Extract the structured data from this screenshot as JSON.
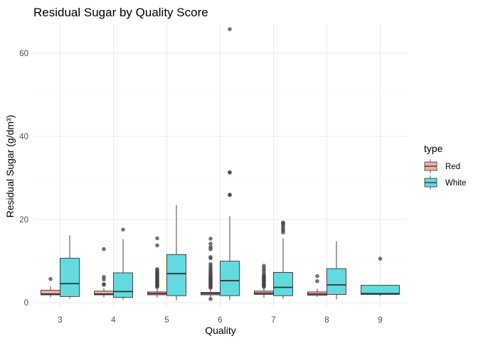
{
  "chart_data": {
    "type": "boxplot",
    "title": "Residual Sugar by Quality Score",
    "xlabel": "Quality",
    "ylabel": "Residual Sugar (g/dm³)",
    "categories": [
      "3",
      "4",
      "5",
      "6",
      "7",
      "8",
      "9"
    ],
    "ylim": [
      -1,
      67
    ],
    "yticks": [
      0,
      20,
      40,
      60
    ],
    "grid": true,
    "legend": {
      "title": "type",
      "position": "right"
    },
    "colors": {
      "Red": "#F8A9A3",
      "White": "#63DADF",
      "outlier": "#444444",
      "line": "#333333"
    },
    "series": [
      {
        "name": "Red",
        "boxes": [
          {
            "category": "3",
            "whisker_low": 1.3,
            "q1": 1.9,
            "median": 2.1,
            "q3": 3.0,
            "whisker_high": 4.0,
            "outliers": [
              5.7
            ]
          },
          {
            "category": "4",
            "whisker_low": 1.3,
            "q1": 1.9,
            "median": 2.1,
            "q3": 2.8,
            "whisker_high": 3.5,
            "outliers": [
              4.3,
              4.5,
              5.6,
              6.2,
              12.9
            ]
          },
          {
            "category": "5",
            "whisker_low": 1.2,
            "q1": 1.9,
            "median": 2.2,
            "q3": 2.6,
            "whisker_high": 3.6,
            "outliers": [
              3.8,
              4.0,
              4.2,
              4.4,
              4.6,
              4.8,
              5.0,
              5.2,
              5.4,
              5.6,
              5.8,
              6.0,
              6.2,
              6.4,
              6.6,
              6.8,
              7.0,
              7.2,
              7.5,
              7.8,
              8.1,
              13.8,
              15.5
            ]
          },
          {
            "category": "6",
            "whisker_low": 0.9,
            "q1": 1.9,
            "median": 2.2,
            "q3": 2.5,
            "whisker_high": 3.4,
            "outliers": [
              0.9,
              3.6,
              3.8,
              4.0,
              4.2,
              4.4,
              4.6,
              4.8,
              5.0,
              5.2,
              5.4,
              5.6,
              5.8,
              6.0,
              6.2,
              6.5,
              6.8,
              7.1,
              7.5,
              7.9,
              8.3,
              8.8,
              9.3,
              10.7,
              11.0,
              12.9,
              13.4,
              14.2,
              15.4
            ]
          },
          {
            "category": "7",
            "whisker_low": 1.2,
            "q1": 2.0,
            "median": 2.3,
            "q3": 2.8,
            "whisker_high": 3.6,
            "outliers": [
              3.8,
              4.0,
              4.2,
              4.4,
              4.6,
              4.8,
              5.0,
              5.2,
              5.4,
              5.6,
              5.8,
              6.0,
              6.2,
              6.4,
              6.7,
              7.2,
              7.8,
              8.3,
              8.9
            ]
          },
          {
            "category": "8",
            "whisker_low": 1.4,
            "q1": 1.8,
            "median": 2.1,
            "q3": 2.6,
            "whisker_high": 3.4,
            "outliers": [
              5.2,
              6.4
            ]
          }
        ]
      },
      {
        "name": "White",
        "boxes": [
          {
            "category": "3",
            "whisker_low": 1.0,
            "q1": 1.5,
            "median": 4.6,
            "q3": 10.7,
            "whisker_high": 16.2,
            "outliers": []
          },
          {
            "category": "4",
            "whisker_low": 0.7,
            "q1": 1.3,
            "median": 2.7,
            "q3": 7.2,
            "whisker_high": 15.3,
            "outliers": [
              17.6
            ]
          },
          {
            "category": "5",
            "whisker_low": 0.6,
            "q1": 1.7,
            "median": 7.0,
            "q3": 11.6,
            "whisker_high": 23.5,
            "outliers": []
          },
          {
            "category": "6",
            "whisker_low": 0.7,
            "q1": 1.7,
            "median": 5.3,
            "q3": 10.0,
            "whisker_high": 20.8,
            "outliers": [
              25.9,
              26.0,
              31.3,
              31.4,
              65.8
            ]
          },
          {
            "category": "7",
            "whisker_low": 0.9,
            "q1": 1.7,
            "median": 3.7,
            "q3": 7.3,
            "whisker_high": 15.5,
            "outliers": [
              16.9,
              17.4,
              17.8,
              18.3,
              18.8,
              19.1,
              19.3
            ]
          },
          {
            "category": "8",
            "whisker_low": 0.8,
            "q1": 2.0,
            "median": 4.3,
            "q3": 8.2,
            "whisker_high": 14.8,
            "outliers": []
          },
          {
            "category": "9",
            "whisker_low": 1.6,
            "q1": 2.0,
            "median": 2.2,
            "q3": 4.2,
            "whisker_high": 4.2,
            "outliers": [
              10.6
            ]
          }
        ]
      }
    ]
  }
}
